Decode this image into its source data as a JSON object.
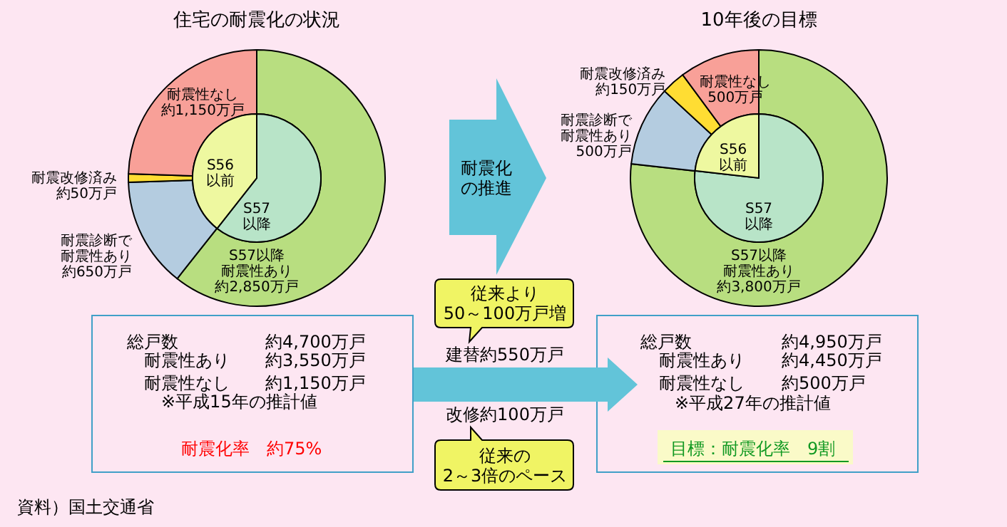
{
  "chart_data": [
    {
      "type": "donut",
      "title": "住宅の耐震化の状況",
      "categories": [
        "S57以降耐震性あり",
        "耐震診断で耐震性あり",
        "耐震改修済み",
        "耐震性なし"
      ],
      "values": [
        2850,
        650,
        50,
        1150
      ],
      "colors": [
        "#b8de80",
        "#b4cce0",
        "#ffdd33",
        "#f8a098"
      ],
      "value_labels": [
        "約2,850万戸",
        "約650万戸",
        "約50万戸",
        "約1,150万戸"
      ]
    },
    {
      "type": "pie",
      "categories": [
        "S57以降",
        "S56以前"
      ],
      "values": [
        60.6,
        39.4
      ],
      "colors": [
        "#b8e4c8",
        "#eef8a0"
      ]
    },
    {
      "type": "donut",
      "title": "10年後の目標",
      "categories": [
        "S57以降耐震性あり",
        "耐震診断で耐震性あり",
        "耐震改修済み",
        "耐震性なし"
      ],
      "values": [
        3800,
        500,
        150,
        500
      ],
      "colors": [
        "#b8de80",
        "#b4cce0",
        "#ffdd33",
        "#f8a098"
      ],
      "value_labels": [
        "約3,800万戸",
        "500万戸",
        "約150万戸",
        "500万戸"
      ]
    },
    {
      "type": "pie",
      "categories": [
        "S57以降",
        "S56以前"
      ],
      "values": [
        76.8,
        23.2
      ],
      "colors": [
        "#b8e4c8",
        "#eef8a0"
      ]
    },
    {
      "type": "other",
      "annotations": [
        "耐震化の推進",
        "従来より50～100万戸増",
        "建替約550万戸",
        "改修約100万戸",
        "従来の2～3倍のペース",
        "総戸数",
        "約4,700万戸",
        "耐震性あり",
        "約3,550万戸",
        "耐震性なし",
        "約1,150万戸",
        "※平成15年の推計値",
        "耐震化率　約75%",
        "総戸数",
        "約4,950万戸",
        "耐震性あり",
        "約4,450万戸",
        "耐震性なし",
        "約500万戸",
        "※平成27年の推計値",
        "目標：耐震化率　9割",
        "資料）国土交通省"
      ]
    }
  ]
}
